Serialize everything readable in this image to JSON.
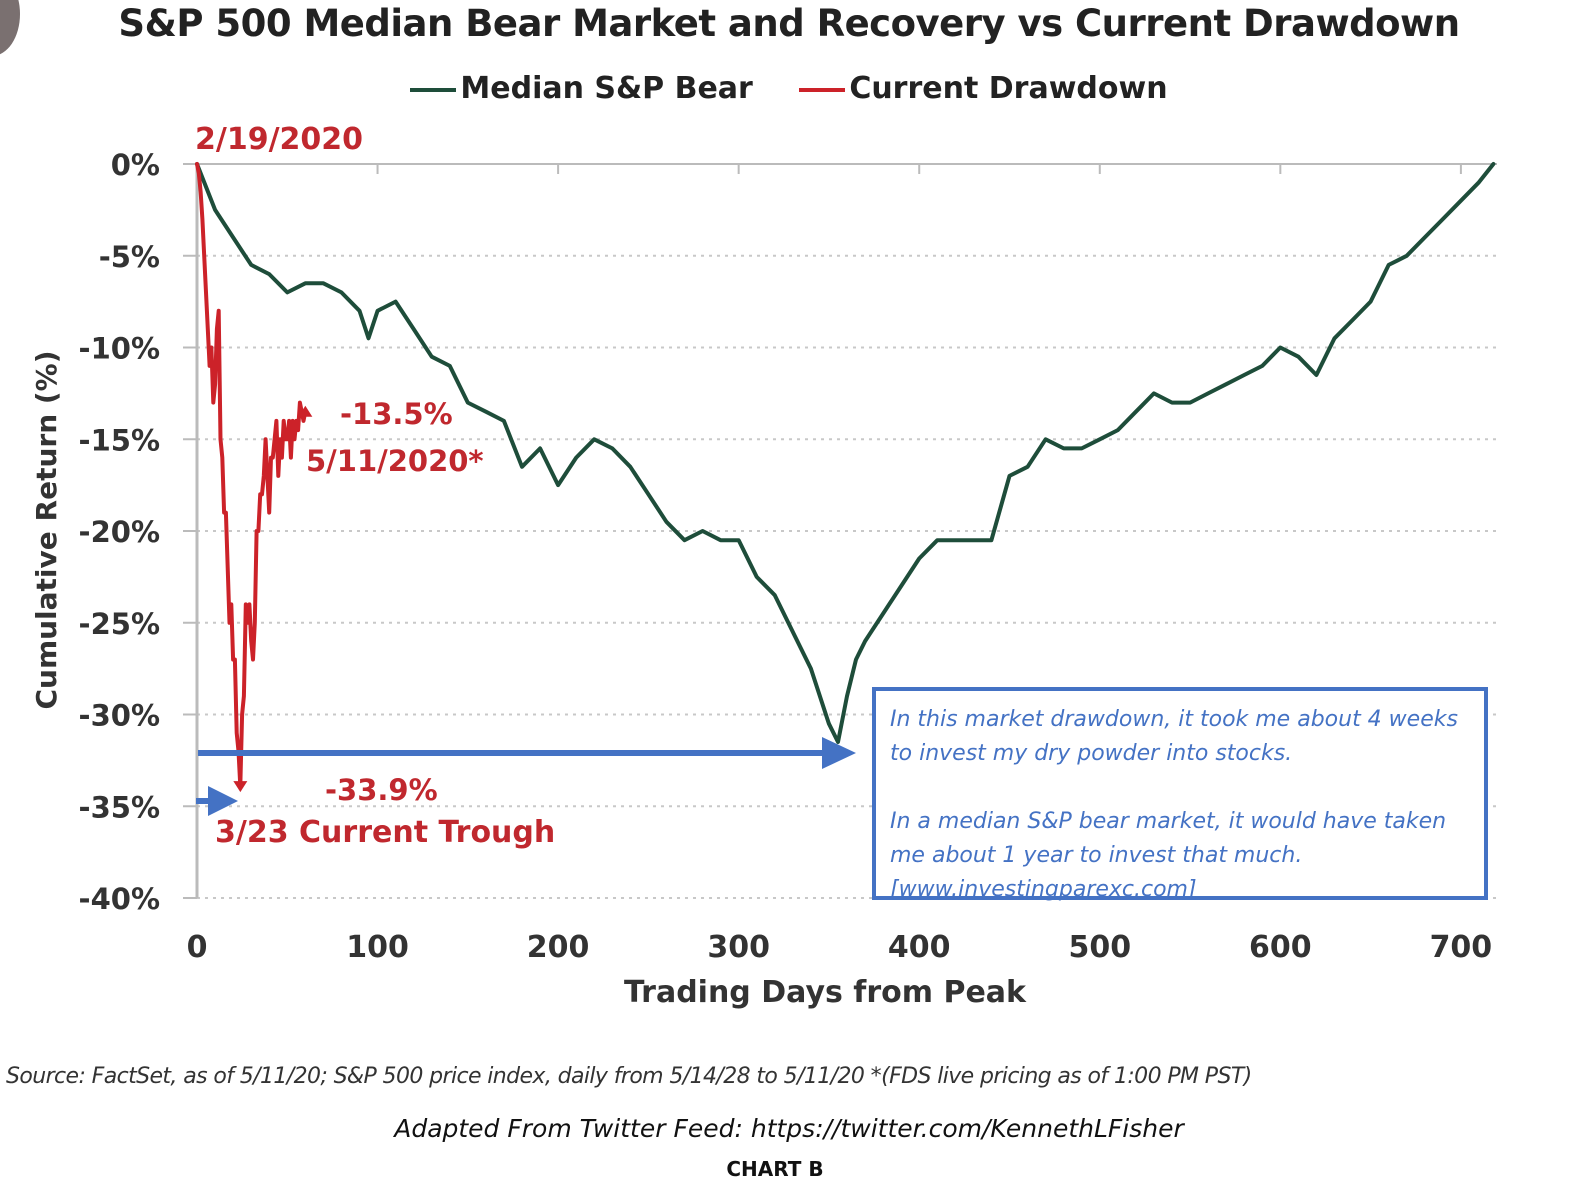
{
  "title": "S&P 500 Median Bear Market and Recovery vs Current Drawdown",
  "legend": [
    {
      "label": "Median S&P Bear",
      "color": "#1e4d3a"
    },
    {
      "label": "Current Drawdown",
      "color": "#cc2229"
    }
  ],
  "annotations": {
    "peak_date": "2/19/2020",
    "current_value": "-13.5%",
    "current_date": "5/11/2020*",
    "trough_value": "-33.9%",
    "trough_label": "3/23 Current Trough"
  },
  "callout": {
    "line1": "In this market drawdown, it took me about 4 weeks",
    "line2": "to invest my dry powder into stocks.",
    "line3": "In a median S&P bear market, it would have taken",
    "line4": "me about 1 year to invest that much.",
    "line5": "[www.investingparexc.com]"
  },
  "footer": {
    "source": "Source:  FactSet, as of 5/11/20; S&P 500 price index, daily from 5/14/28 to 5/11/20 *(FDS live pricing as of 1:00 PM PST)",
    "adapted": "Adapted From Twitter Feed: https://twitter.com/KennethLFisher",
    "chart_label": "CHART B"
  },
  "colors": {
    "median": "#1e4d3a",
    "current": "#cc2229",
    "arrows": "#4472c4",
    "annotation_text": "#c0282e"
  },
  "chart_data": {
    "type": "line",
    "title": "S&P 500 Median Bear Market and Recovery vs Current Drawdown",
    "xlabel": "Trading Days from Peak",
    "ylabel": "Cumulative Return (%)",
    "xlim": [
      0,
      720
    ],
    "ylim": [
      -40,
      0
    ],
    "x_ticks": [
      "0",
      "100",
      "200",
      "300",
      "400",
      "500",
      "600",
      "700"
    ],
    "y_ticks": [
      "0%",
      "-5%",
      "-10%",
      "-15%",
      "-20%",
      "-25%",
      "-30%",
      "-35%",
      "-40%"
    ],
    "grid": true,
    "legend_position": "top",
    "series": [
      {
        "name": "Median S&P Bear",
        "x": [
          0,
          10,
          20,
          30,
          40,
          50,
          60,
          70,
          80,
          90,
          95,
          100,
          110,
          120,
          130,
          140,
          150,
          160,
          170,
          180,
          190,
          200,
          210,
          220,
          230,
          240,
          250,
          260,
          270,
          280,
          290,
          300,
          310,
          320,
          330,
          340,
          350,
          355,
          360,
          365,
          370,
          380,
          390,
          400,
          410,
          420,
          430,
          440,
          450,
          460,
          470,
          480,
          490,
          500,
          510,
          520,
          530,
          540,
          550,
          560,
          570,
          580,
          590,
          600,
          610,
          620,
          630,
          640,
          650,
          660,
          670,
          680,
          690,
          700,
          710,
          718
        ],
        "y": [
          0,
          -2.5,
          -4,
          -5.5,
          -6,
          -7,
          -6.5,
          -6.5,
          -7,
          -8,
          -9.5,
          -8,
          -7.5,
          -9,
          -10.5,
          -11,
          -13,
          -13.5,
          -14,
          -16.5,
          -15.5,
          -17.5,
          -16,
          -15,
          -15.5,
          -16.5,
          -18,
          -19.5,
          -20.5,
          -20,
          -20.5,
          -20.5,
          -22.5,
          -23.5,
          -25.5,
          -27.5,
          -30.5,
          -31.5,
          -29,
          -27,
          -26,
          -24.5,
          -23,
          -21.5,
          -20.5,
          -20.5,
          -20.5,
          -20.5,
          -17,
          -16.5,
          -15,
          -15.5,
          -15.5,
          -15,
          -14.5,
          -13.5,
          -12.5,
          -13,
          -13,
          -12.5,
          -12,
          -11.5,
          -11,
          -10,
          -10.5,
          -11.5,
          -9.5,
          -8.5,
          -7.5,
          -5.5,
          -5,
          -4,
          -3,
          -2,
          -1,
          0
        ]
      },
      {
        "name": "Current Drawdown",
        "x": [
          0,
          1,
          2,
          3,
          4,
          5,
          6,
          7,
          8,
          9,
          10,
          11,
          12,
          13,
          14,
          15,
          16,
          17,
          18,
          19,
          20,
          21,
          22,
          23,
          24,
          25,
          26,
          27,
          28,
          29,
          30,
          31,
          32,
          33,
          34,
          35,
          36,
          37,
          38,
          39,
          40,
          41,
          42,
          43,
          44,
          45,
          46,
          47,
          48,
          49,
          50,
          51,
          52,
          53,
          54,
          55,
          56,
          57,
          58,
          59,
          60
        ],
        "y": [
          0,
          -0.5,
          -1.5,
          -3,
          -5,
          -7,
          -9,
          -11,
          -10,
          -13,
          -12,
          -9,
          -8,
          -15,
          -16,
          -19,
          -19,
          -22,
          -25,
          -24,
          -27,
          -27,
          -31,
          -32,
          -33.9,
          -30,
          -29,
          -24,
          -25,
          -24,
          -26,
          -27,
          -25,
          -20,
          -20,
          -18,
          -18,
          -17,
          -15,
          -17,
          -19,
          -16,
          -16,
          -15,
          -14,
          -17,
          -15,
          -16,
          -14,
          -15,
          -15,
          -14,
          -16,
          -14,
          -15,
          -14,
          -14.5,
          -13,
          -13.5,
          -14,
          -13.5
        ]
      }
    ]
  }
}
